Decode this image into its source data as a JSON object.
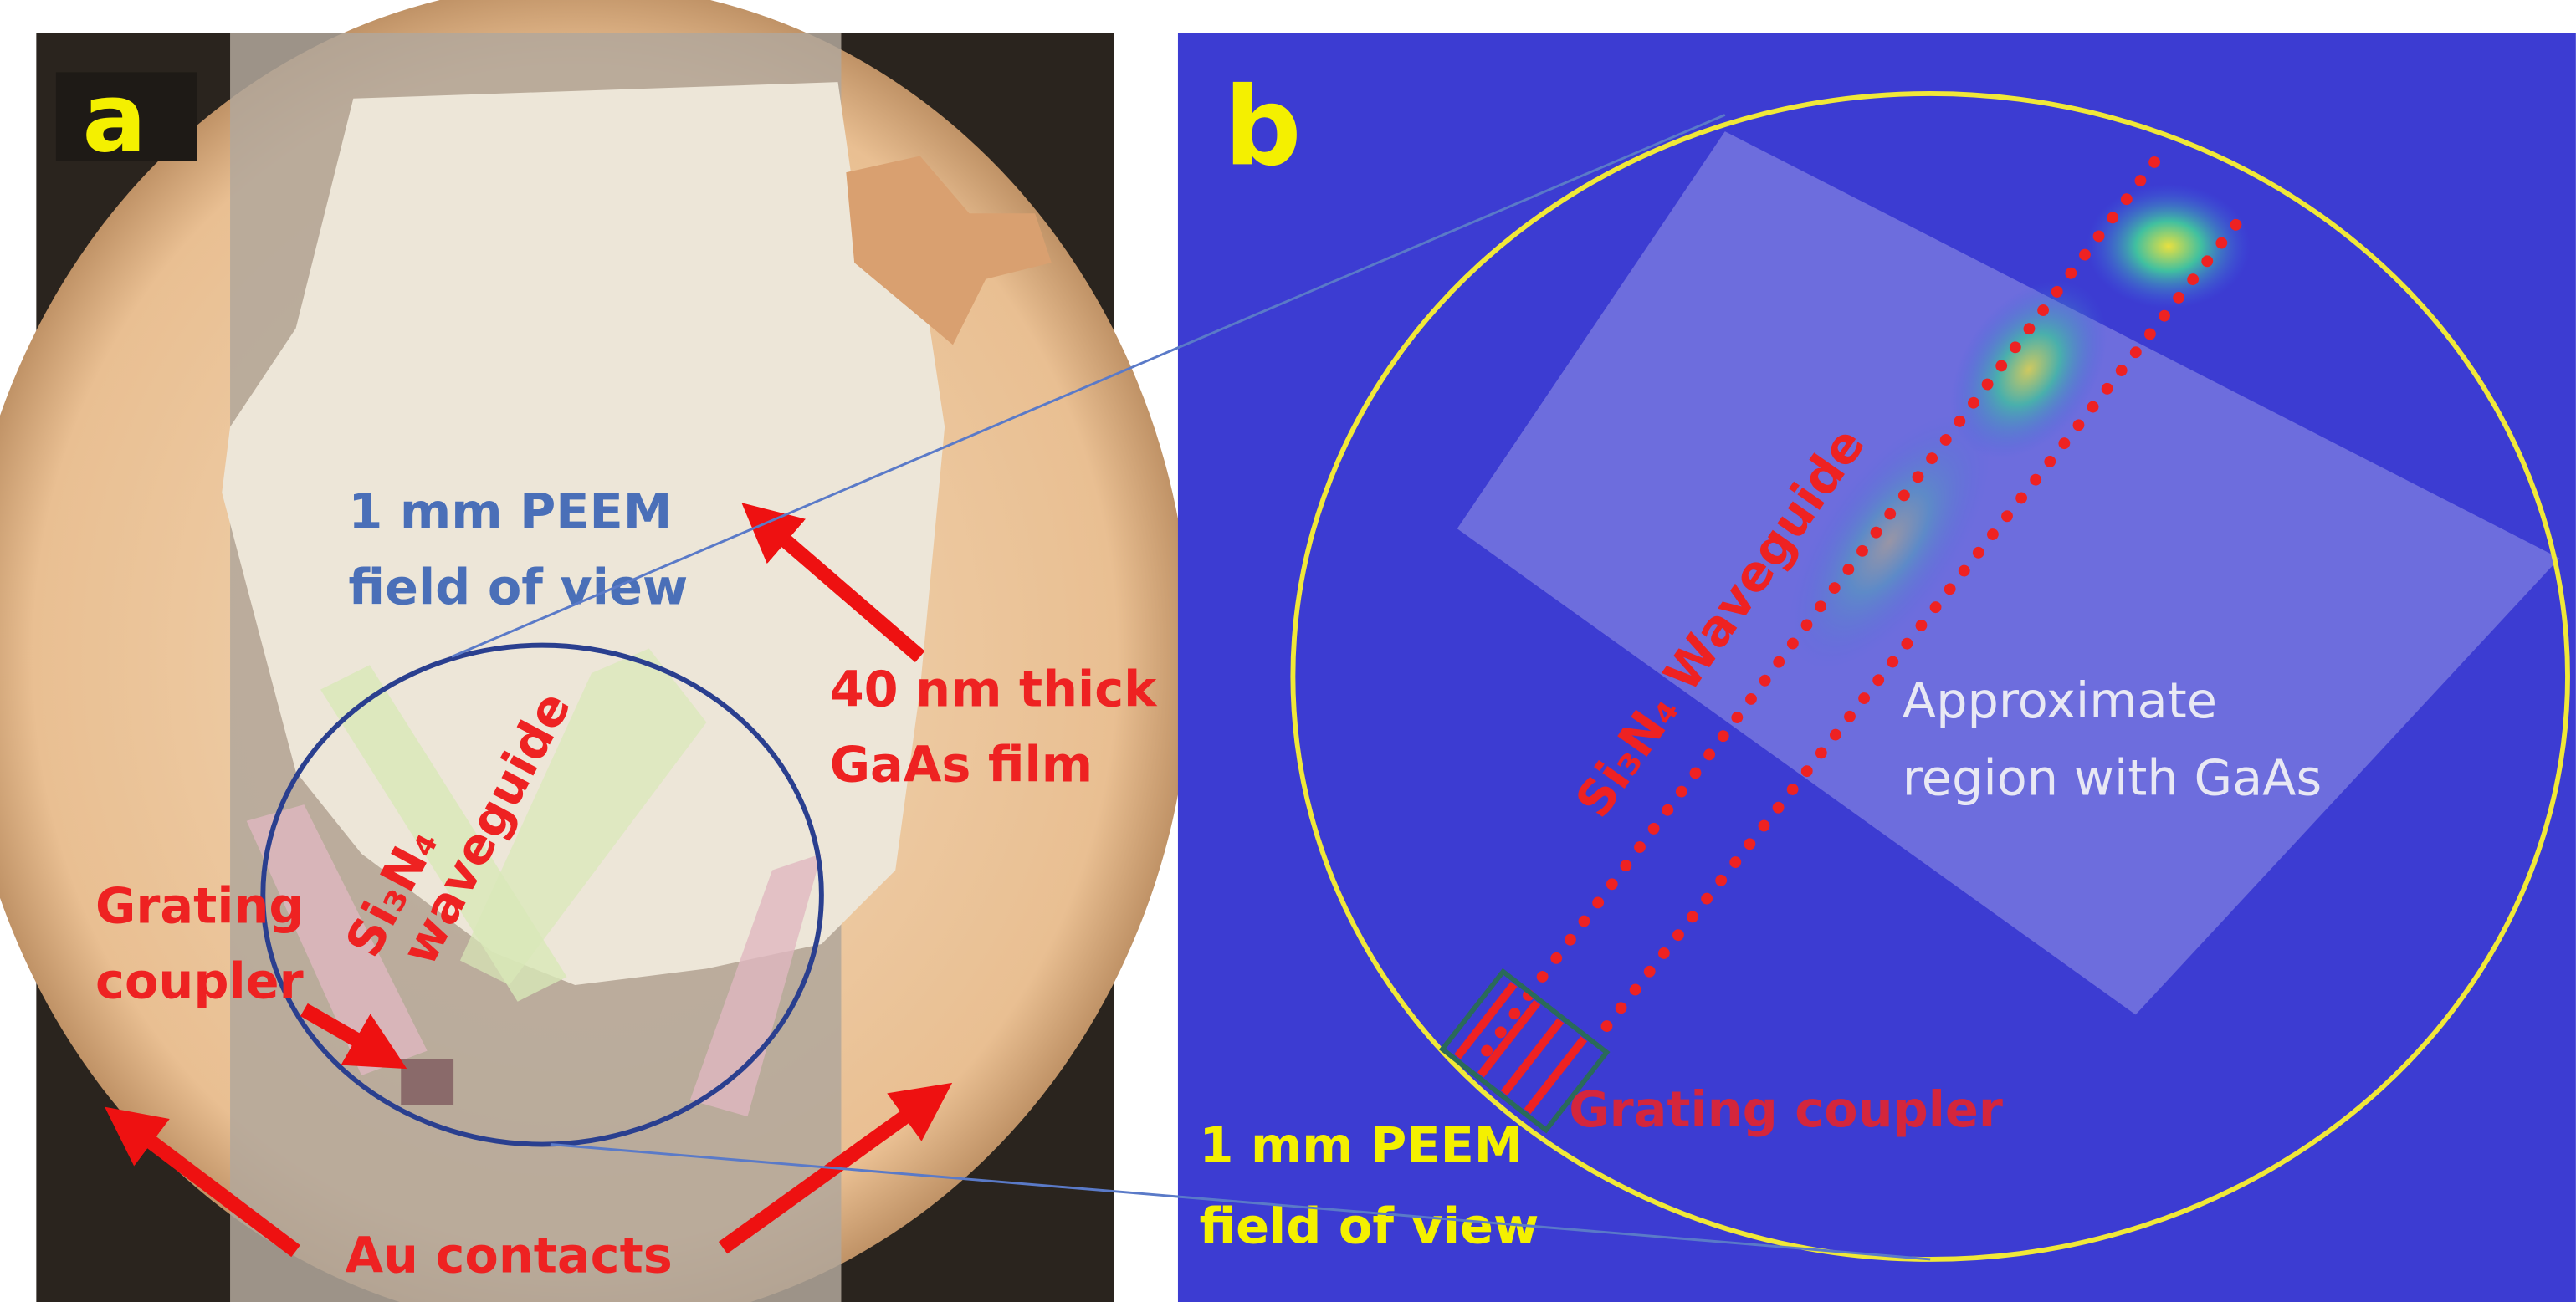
{
  "panels": [
    {
      "label": "a",
      "peem_label": [
        "1 mm PEEM",
        "field of view"
      ],
      "film_label": [
        "40 nm thick",
        "GaAs film"
      ],
      "grating_label": [
        "Grating",
        "coupler"
      ],
      "waveguide_label": [
        "Si₃N₄",
        "waveguide"
      ],
      "contacts_label": "Au contacts"
    },
    {
      "label": "b",
      "waveguide_label": "Si₃N₄ Waveguide",
      "region_label": [
        "Approximate",
        "region with GaAs"
      ],
      "grating_label": "Grating coupler",
      "peem_label": [
        "1 mm PEEM",
        "field of view"
      ]
    }
  ]
}
